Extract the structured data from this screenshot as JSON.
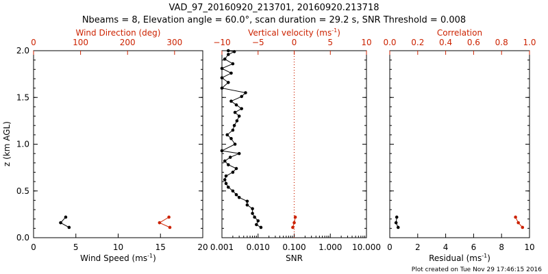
{
  "header": {
    "title_line1": "VAD_97_20160920_213701, 20160920.213718",
    "title_line2": "Nbeams = 8, Elevation angle = 60.0°, scan duration = 29.2 s, SNR Threshold = 0.008"
  },
  "footer": {
    "plot_created": "Plot created on Tue Nov 29 17:46:15 2016"
  },
  "colors": {
    "black": "#000000",
    "red": "#cc2200"
  },
  "y_axis": {
    "label": "z (km AGL)",
    "ticks": [
      "0.0",
      "0.5",
      "1.0",
      "1.5",
      "2.0"
    ]
  },
  "chart_data": [
    {
      "type": "line",
      "panel": "left",
      "ylim": [
        0,
        2
      ],
      "bottom_axis": {
        "label": "Wind Speed (ms",
        "label_sup": "-1",
        "label_end": ")",
        "ticks": [
          "0",
          "5",
          "10",
          "15",
          "20"
        ],
        "lim": [
          0,
          20
        ]
      },
      "top_axis": {
        "label": "Wind Direction (deg)",
        "ticks": [
          "0",
          "100",
          "200",
          "300"
        ],
        "lim": [
          0,
          360
        ]
      },
      "series": [
        {
          "axis": "bottom",
          "color": "black",
          "points": [
            [
              3.8,
              0.22
            ],
            [
              3.2,
              0.16
            ],
            [
              4.2,
              0.11
            ]
          ]
        },
        {
          "axis": "top",
          "color": "red",
          "points": [
            [
              288,
              0.22
            ],
            [
              268,
              0.16
            ],
            [
              290,
              0.11
            ]
          ]
        }
      ]
    },
    {
      "type": "line",
      "panel": "middle",
      "ylim": [
        0,
        2
      ],
      "bottom_axis": {
        "label": "SNR",
        "ticks": [
          "0.001",
          "0.010",
          "0.100",
          "1.000",
          "10.000"
        ],
        "log": true,
        "lim": [
          0.001,
          10
        ]
      },
      "top_axis": {
        "label": "Vertical velocity (ms",
        "label_sup": "-1",
        "label_end": ")",
        "ticks": [
          "−10",
          "−5",
          "0",
          "5",
          "10"
        ],
        "lim": [
          -10,
          10
        ]
      },
      "reference_line": {
        "axis": "top",
        "value": 0,
        "style": "dotted",
        "color": "red"
      },
      "series": [
        {
          "axis": "bottom",
          "color": "black",
          "points": [
            [
              0.012,
              0.11
            ],
            [
              0.009,
              0.14
            ],
            [
              0.01,
              0.18
            ],
            [
              0.008,
              0.22
            ],
            [
              0.007,
              0.26
            ],
            [
              0.007,
              0.31
            ],
            [
              0.005,
              0.35
            ],
            [
              0.005,
              0.39
            ],
            [
              0.003,
              0.43
            ],
            [
              0.0025,
              0.46
            ],
            [
              0.002,
              0.5
            ],
            [
              0.0015,
              0.54
            ],
            [
              0.0013,
              0.58
            ],
            [
              0.0012,
              0.62
            ],
            [
              0.0013,
              0.66
            ],
            [
              0.002,
              0.7
            ],
            [
              0.0025,
              0.74
            ],
            [
              0.0015,
              0.78
            ],
            [
              0.0012,
              0.82
            ],
            [
              0.0017,
              0.86
            ],
            [
              0.003,
              0.9
            ],
            [
              0.001,
              0.93
            ],
            [
              0.0023,
              1.0
            ],
            [
              0.0018,
              1.06
            ],
            [
              0.0014,
              1.1
            ],
            [
              0.002,
              1.15
            ],
            [
              0.0022,
              1.2
            ],
            [
              0.0026,
              1.25
            ],
            [
              0.003,
              1.3
            ],
            [
              0.0023,
              1.34
            ],
            [
              0.0035,
              1.38
            ],
            [
              0.0025,
              1.42
            ],
            [
              0.0018,
              1.46
            ],
            [
              0.0035,
              1.51
            ],
            [
              0.0045,
              1.55
            ],
            [
              0.001,
              1.6
            ],
            [
              0.0015,
              1.66
            ],
            [
              0.001,
              1.71
            ],
            [
              0.0018,
              1.76
            ],
            [
              0.001,
              1.81
            ],
            [
              0.002,
              1.86
            ],
            [
              0.0012,
              1.91
            ],
            [
              0.0015,
              1.96
            ],
            [
              0.0022,
              1.99
            ],
            [
              0.0015,
              2.0
            ]
          ]
        },
        {
          "axis": "top",
          "color": "red",
          "points": [
            [
              0.15,
              0.22
            ],
            [
              0.0,
              0.16
            ],
            [
              -0.2,
              0.11
            ]
          ]
        }
      ]
    },
    {
      "type": "line",
      "panel": "right",
      "ylim": [
        0,
        2
      ],
      "bottom_axis": {
        "label": "Residual (ms",
        "label_sup": "-1",
        "label_end": ")",
        "ticks": [
          "0",
          "2",
          "4",
          "6",
          "8",
          "10"
        ],
        "lim": [
          0,
          10
        ]
      },
      "top_axis": {
        "label": "Correlation",
        "ticks": [
          "0.0",
          "0.2",
          "0.4",
          "0.6",
          "0.8",
          "1.0"
        ],
        "lim": [
          0,
          1
        ]
      },
      "series": [
        {
          "axis": "bottom",
          "color": "black",
          "points": [
            [
              0.5,
              0.22
            ],
            [
              0.45,
              0.16
            ],
            [
              0.6,
              0.11
            ]
          ]
        },
        {
          "axis": "top",
          "color": "red",
          "points": [
            [
              0.9,
              0.22
            ],
            [
              0.92,
              0.16
            ],
            [
              0.95,
              0.11
            ]
          ]
        }
      ]
    }
  ]
}
